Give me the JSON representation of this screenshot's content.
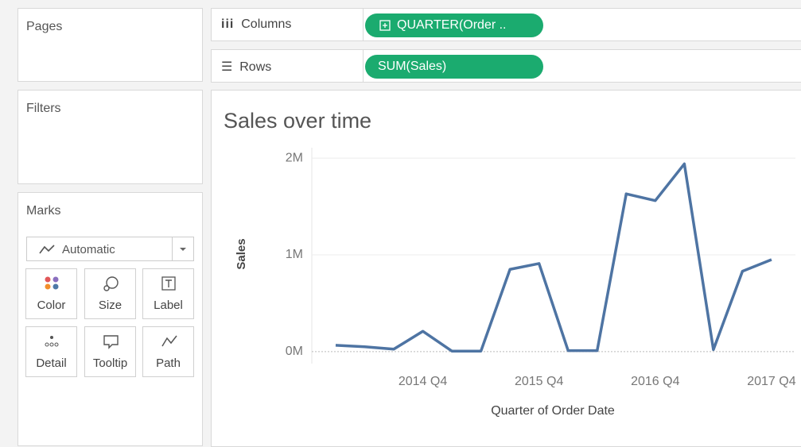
{
  "ui": {
    "pages": "Pages",
    "filters": "Filters",
    "marks": {
      "title": "Marks",
      "mark_type": "Automatic",
      "buttons": [
        "Color",
        "Size",
        "Label",
        "Detail",
        "Tooltip",
        "Path"
      ]
    },
    "columns": {
      "label": "Columns",
      "pill": "QUARTER(Order .."
    },
    "rows": {
      "label": "Rows",
      "pill": "SUM(Sales)"
    }
  },
  "chart_data": {
    "type": "line",
    "title": "Sales over time",
    "x_label": "Quarter of Order Date",
    "y_label": "Sales",
    "categories": [
      null,
      null,
      null,
      "2014 Q4",
      null,
      null,
      null,
      "2015 Q4",
      null,
      null,
      null,
      "2016 Q4",
      null,
      null,
      null,
      "2017 Q4"
    ],
    "values": [
      0.065,
      0.05,
      0.025,
      0.21,
      0.005,
      0.005,
      0.85,
      0.91,
      0.01,
      0.01,
      1.63,
      1.56,
      1.94,
      0.02,
      0.83,
      0.95
    ],
    "color": "#4e74a3",
    "ylim": [
      -0.1,
      2.05
    ],
    "yticks": [
      {
        "value": 0,
        "label": "0M"
      },
      {
        "value": 1,
        "label": "1M"
      },
      {
        "value": 2,
        "label": "2M"
      }
    ],
    "grid": true
  }
}
